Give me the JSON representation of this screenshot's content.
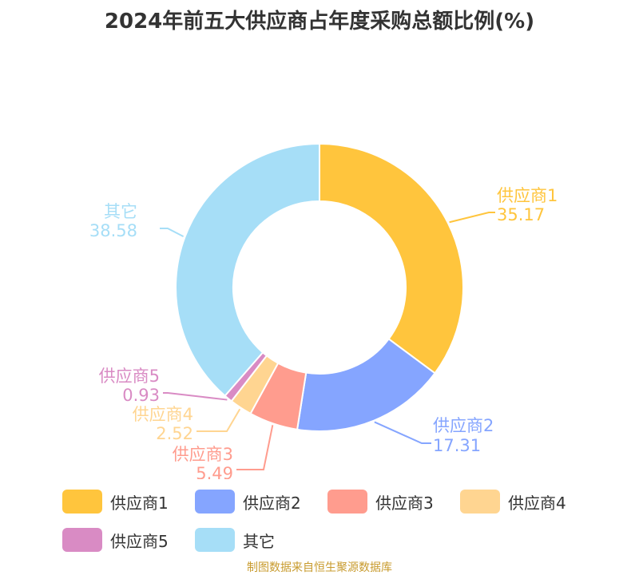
{
  "title": "2024年前五大供应商占年度采购总额比例(%)",
  "source": "制图数据来自恒生聚源数据库",
  "chart_data": {
    "type": "pie",
    "donut": true,
    "legend_position": "bottom",
    "slices": [
      {
        "name": "供应商1",
        "value": 35.17,
        "color": "#FFC53D"
      },
      {
        "name": "供应商2",
        "value": 17.31,
        "color": "#85A5FF"
      },
      {
        "name": "供应商3",
        "value": 5.49,
        "color": "#FF9C8E"
      },
      {
        "name": "供应商4",
        "value": 2.52,
        "color": "#FFD591"
      },
      {
        "name": "供应商5",
        "value": 0.93,
        "color": "#D98BC4"
      },
      {
        "name": "其它",
        "value": 38.58,
        "color": "#A6DEF7"
      }
    ]
  }
}
